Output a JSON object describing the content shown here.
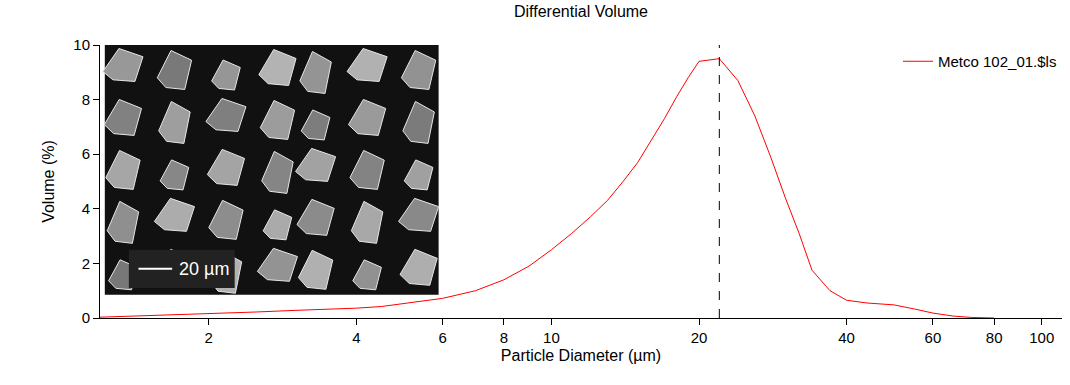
{
  "chart_data": {
    "type": "line",
    "title": "Differential Volume",
    "x_label": "Particle Diameter (µm)",
    "y_label": "Volume (%)",
    "log": "x",
    "grid": false,
    "legend": "top-right",
    "xlim": [
      1.2,
      110
    ],
    "xticks": [
      2,
      4,
      6,
      8,
      10,
      20,
      40,
      60,
      80,
      100
    ],
    "ylim": [
      0,
      10
    ],
    "yticks": [
      0,
      2,
      4,
      6,
      8,
      10
    ],
    "x": [
      1.2,
      1.3,
      1.5,
      2,
      2.5,
      3,
      3.5,
      4,
      4.5,
      5,
      5.5,
      6,
      7,
      8,
      9,
      10,
      11,
      12,
      13,
      14,
      15,
      16,
      17,
      18,
      19,
      20,
      22,
      24,
      26,
      28,
      30,
      32,
      34,
      37,
      40,
      44,
      50,
      55,
      60,
      66,
      72,
      80
    ],
    "series": [
      {
        "name": "Metco 102_01.$ls",
        "color": "#ff0000",
        "line_style": "solid",
        "values": [
          0.03,
          0.05,
          0.08,
          0.15,
          0.22,
          0.28,
          0.32,
          0.36,
          0.42,
          0.52,
          0.62,
          0.72,
          1.0,
          1.4,
          1.9,
          2.5,
          3.1,
          3.7,
          4.3,
          5.0,
          5.7,
          6.5,
          7.3,
          8.1,
          8.8,
          9.4,
          9.5,
          8.7,
          7.4,
          5.9,
          4.4,
          3.1,
          1.75,
          1.0,
          0.65,
          0.55,
          0.48,
          0.33,
          0.18,
          0.07,
          0.02,
          0.0
        ]
      }
    ],
    "reference_line": {
      "x": 22,
      "line_style": "dashed",
      "color": "#000000"
    },
    "inset": {
      "type": "image",
      "scale_bar_label": "20 µm"
    }
  }
}
